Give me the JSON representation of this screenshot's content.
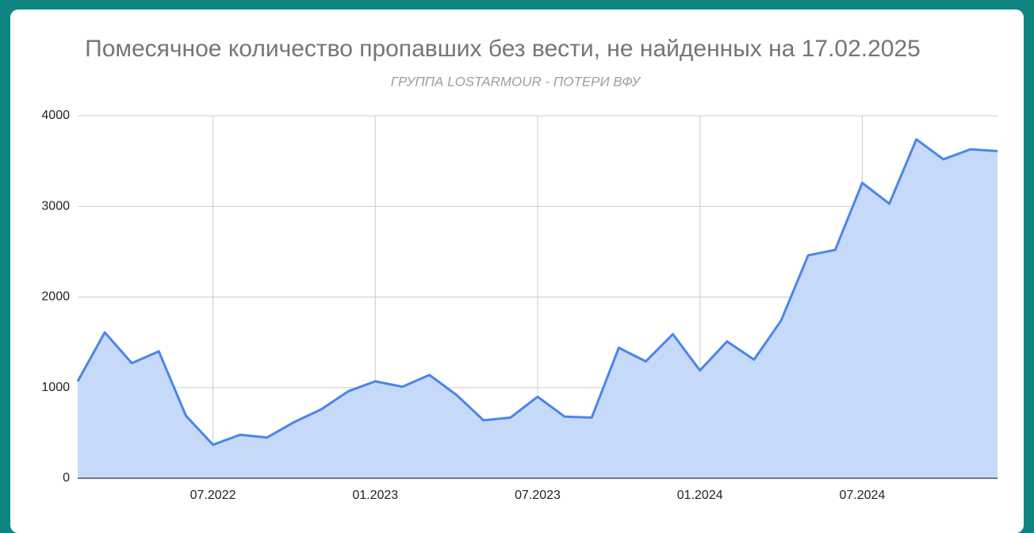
{
  "chart_data": {
    "type": "area",
    "title": "Помесячное количество пропавших без вести, не найденных на 17.02.2025",
    "subtitle": "ГРУППА LOSTARMOUR - ПОТЕРИ ВФУ",
    "x": [
      "02.2022",
      "03.2022",
      "04.2022",
      "05.2022",
      "06.2022",
      "07.2022",
      "08.2022",
      "09.2022",
      "10.2022",
      "11.2022",
      "12.2022",
      "01.2023",
      "02.2023",
      "03.2023",
      "04.2023",
      "05.2023",
      "06.2023",
      "07.2023",
      "08.2023",
      "09.2023",
      "10.2023",
      "11.2023",
      "12.2023",
      "01.2024",
      "02.2024",
      "03.2024",
      "04.2024",
      "05.2024",
      "06.2024",
      "07.2024",
      "08.2024",
      "09.2024",
      "10.2024",
      "11.2024",
      "12.2024"
    ],
    "values": [
      1070,
      1610,
      1270,
      1400,
      690,
      370,
      480,
      450,
      620,
      760,
      960,
      1070,
      1010,
      1140,
      920,
      640,
      670,
      900,
      680,
      670,
      1440,
      1290,
      1590,
      1190,
      1510,
      1310,
      1740,
      2460,
      2520,
      3260,
      3030,
      3740,
      3520,
      3630,
      3610
    ],
    "color": "#4a86e8",
    "fill": "#c6d9f8",
    "xlim": [
      "02.2022",
      "12.2024"
    ],
    "xticks": [
      "07.2022",
      "01.2023",
      "07.2023",
      "01.2024",
      "07.2024"
    ],
    "ylim": [
      0,
      4000
    ],
    "yticks": [
      0,
      1000,
      2000,
      3000,
      4000
    ],
    "grid": true
  }
}
